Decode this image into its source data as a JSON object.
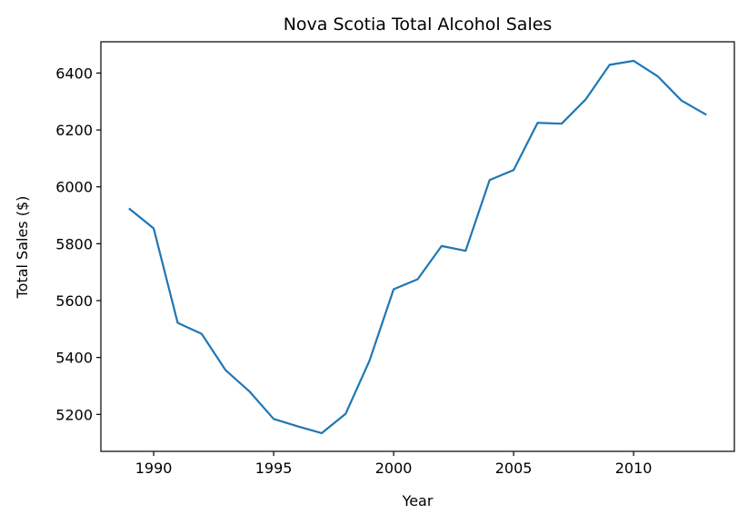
{
  "chart_data": {
    "type": "line",
    "title": "Nova Scotia Total Alcohol Sales",
    "xlabel": "Year",
    "ylabel": "Total Sales ($)",
    "xlim": [
      1987.8,
      2014.2
    ],
    "ylim": [
      5070,
      6510
    ],
    "xticks": [
      1990,
      1995,
      2000,
      2005,
      2010
    ],
    "yticks": [
      5200,
      5400,
      5600,
      5800,
      6000,
      6200,
      6400
    ],
    "grid": false,
    "series": [
      {
        "color": "#1f77b4",
        "x": [
          1989,
          1990,
          1991,
          1992,
          1993,
          1994,
          1995,
          1996,
          1997,
          1998,
          1999,
          2000,
          2001,
          2002,
          2003,
          2004,
          2005,
          2006,
          2007,
          2008,
          2009,
          2010,
          2011,
          2012,
          2013
        ],
        "y": [
          5922,
          5854,
          5522,
          5483,
          5355,
          5280,
          5184,
          5158,
          5134,
          5202,
          5390,
          5640,
          5675,
          5792,
          5775,
          6024,
          6059,
          6225,
          6222,
          6307,
          6429,
          6443,
          6389,
          6303,
          6255
        ]
      }
    ]
  }
}
